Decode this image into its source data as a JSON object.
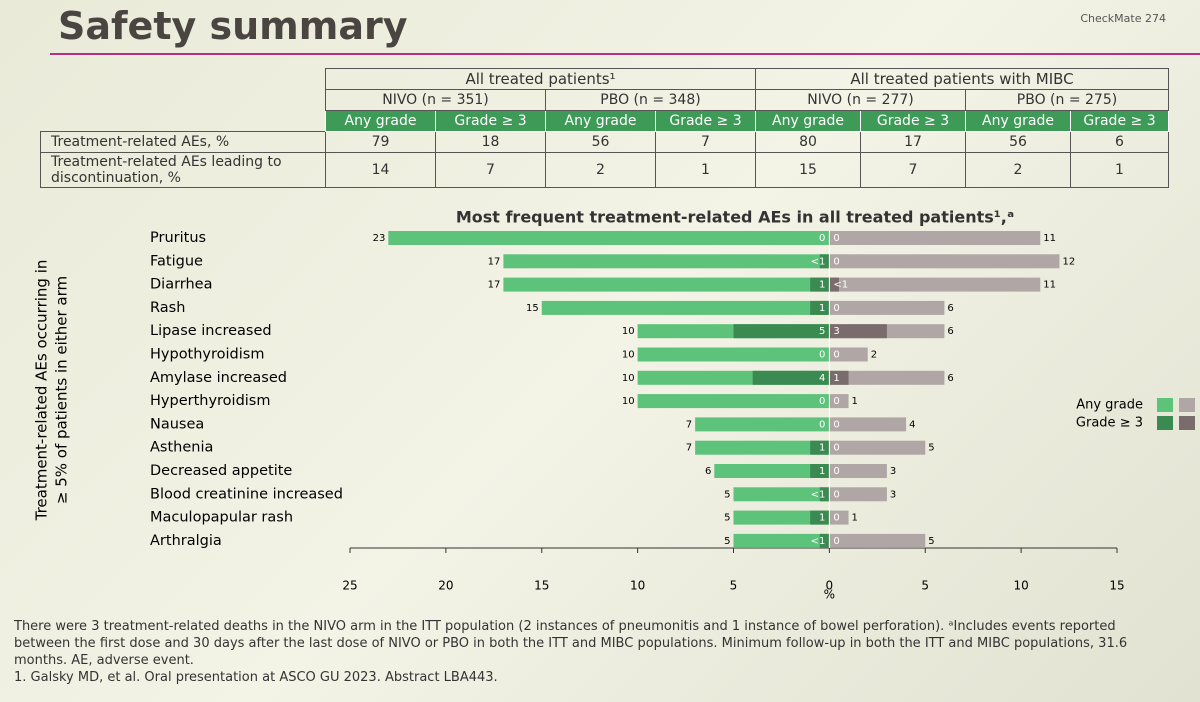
{
  "header": {
    "title": "Safety summary",
    "study": "CheckMate 274"
  },
  "table": {
    "groups": [
      "All treated patients¹",
      "All treated patients with MIBC"
    ],
    "arms": [
      "NIVO (n = 351)",
      "PBO (n = 348)",
      "NIVO (n = 277)",
      "PBO (n = 275)"
    ],
    "subheaders": [
      "Any grade",
      "Grade ≥ 3",
      "Any grade",
      "Grade ≥ 3",
      "Any grade",
      "Grade ≥ 3",
      "Any grade",
      "Grade ≥ 3"
    ],
    "rows": [
      {
        "label": "Treatment-related AEs, %",
        "cells": [
          79,
          18,
          56,
          7,
          80,
          17,
          56,
          6
        ]
      },
      {
        "label": "Treatment-related AEs leading to discontinuation, %",
        "cells": [
          14,
          7,
          2,
          1,
          15,
          7,
          2,
          1
        ]
      }
    ]
  },
  "chart_data": {
    "type": "butterfly",
    "title": "Most frequent treatment-related AEs in all treated patients¹,ᵃ",
    "ylabel": [
      "Treatment-related AEs occurring in",
      "≥ 5% of patients in either arm"
    ],
    "xlabel": "%",
    "categories": [
      "Pruritus",
      "Fatigue",
      "Diarrhea",
      "Rash",
      "Lipase increased",
      "Hypothyroidism",
      "Amylase increased",
      "Hyperthyroidism",
      "Nausea",
      "Asthenia",
      "Decreased appetite",
      "Blood creatinine increased",
      "Maculopapular rash",
      "Arthralgia"
    ],
    "series": [
      {
        "name": "Any grade",
        "color": "#5dc27a",
        "side": "left",
        "values": [
          23,
          17,
          17,
          15,
          10,
          10,
          10,
          10,
          7,
          7,
          6,
          5,
          5,
          5
        ]
      },
      {
        "name": "Grade ≥ 3",
        "color": "#3b8a52",
        "side": "left",
        "values": [
          0,
          0.5,
          1,
          1,
          5,
          0,
          4,
          0,
          0,
          1,
          1,
          0.5,
          1,
          0.5
        ],
        "value_labels": [
          "0",
          "<1",
          "1",
          "1",
          "5",
          "0",
          "4",
          "0",
          "0",
          "1",
          "1",
          "<1",
          "1",
          "<1"
        ]
      },
      {
        "name": "Any grade",
        "color": "#b0a6a6",
        "side": "right",
        "values": [
          11,
          12,
          11,
          6,
          6,
          2,
          6,
          1,
          4,
          5,
          3,
          3,
          1,
          5
        ]
      },
      {
        "name": "Grade ≥ 3",
        "color": "#7a6c6c",
        "side": "right",
        "values": [
          0,
          0,
          0.5,
          0,
          3,
          0,
          1,
          0,
          0,
          0,
          0,
          0,
          0,
          0
        ],
        "value_labels": [
          "0",
          "0",
          "<1",
          "0",
          "3",
          "0",
          "1",
          "0",
          "0",
          "0",
          "0",
          "0",
          "0",
          "0"
        ]
      }
    ],
    "xlim": [
      -25,
      15
    ],
    "xticks": [
      {
        "value": -25,
        "label": "25"
      },
      {
        "value": -20,
        "label": "20"
      },
      {
        "value": -15,
        "label": "15"
      },
      {
        "value": -10,
        "label": "10"
      },
      {
        "value": -5,
        "label": "5"
      },
      0,
      5,
      10,
      15
    ],
    "grid": false
  },
  "footnotes": [
    "There were 3 treatment-related deaths in the NIVO arm in the ITT population (2 instances of pneumonitis and 1 instance of bowel perforation). ᵃIncludes events reported between the first dose and 30 days after the last dose of NIVO or PBO in both the ITT and MIBC populations. Minimum follow-up in both the ITT and MIBC populations, 31.6 months. AE, adverse event.",
    "1. Galsky MD, et al. Oral presentation at ASCO GU 2023. Abstract LBA443."
  ]
}
